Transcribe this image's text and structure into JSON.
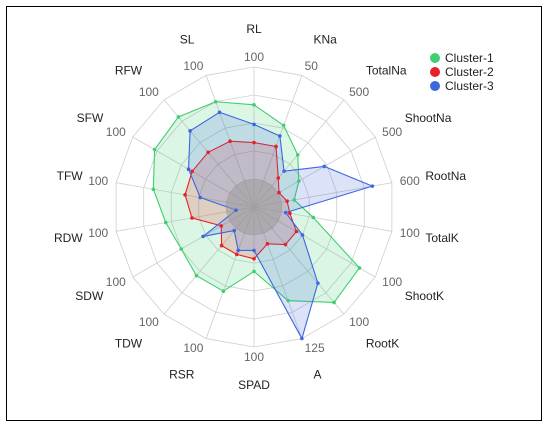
{
  "chart_data": {
    "type": "radar",
    "title": "",
    "axes": [
      {
        "name": "RL",
        "max": 100
      },
      {
        "name": "KNa",
        "max": 50
      },
      {
        "name": "TotalNa",
        "max": 500
      },
      {
        "name": "ShootNa",
        "max": 500
      },
      {
        "name": "RootNa",
        "max": 600
      },
      {
        "name": "TotalK",
        "max": 100
      },
      {
        "name": "ShootK",
        "max": 100
      },
      {
        "name": "RootK",
        "max": 100
      },
      {
        "name": "A",
        "max": 125
      },
      {
        "name": "SPAD",
        "max": 100
      },
      {
        "name": "RSR",
        "max": 100
      },
      {
        "name": "TDW",
        "max": 100
      },
      {
        "name": "SDW",
        "max": 100
      },
      {
        "name": "RDW",
        "max": 100
      },
      {
        "name": "TFW",
        "max": 100
      },
      {
        "name": "SFW",
        "max": 100
      },
      {
        "name": "RFW",
        "max": 100
      },
      {
        "name": "SL",
        "max": 100
      }
    ],
    "rings": 5,
    "legend_position": "top-right",
    "series": [
      {
        "name": "Cluster-1",
        "color": "#3fcf6f",
        "values": [
          73,
          31,
          243,
          185,
          175,
          43,
          87,
          89,
          89,
          46,
          64,
          64,
          60,
          64,
          73,
          82,
          84,
          80
        ]
      },
      {
        "name": "Cluster-2",
        "color": "#e8202a",
        "values": [
          46,
          23,
          135,
          103,
          144,
          26,
          35,
          35,
          35,
          37,
          36,
          36,
          27,
          45,
          50,
          51,
          51,
          50
        ]
      },
      {
        "name": "Cluster-3",
        "color": "#3d66e0",
        "values": [
          59,
          27,
          167,
          290,
          515,
          23,
          40,
          71,
          125,
          31,
          33,
          22,
          42,
          13,
          39,
          54,
          71,
          72
        ]
      }
    ]
  }
}
